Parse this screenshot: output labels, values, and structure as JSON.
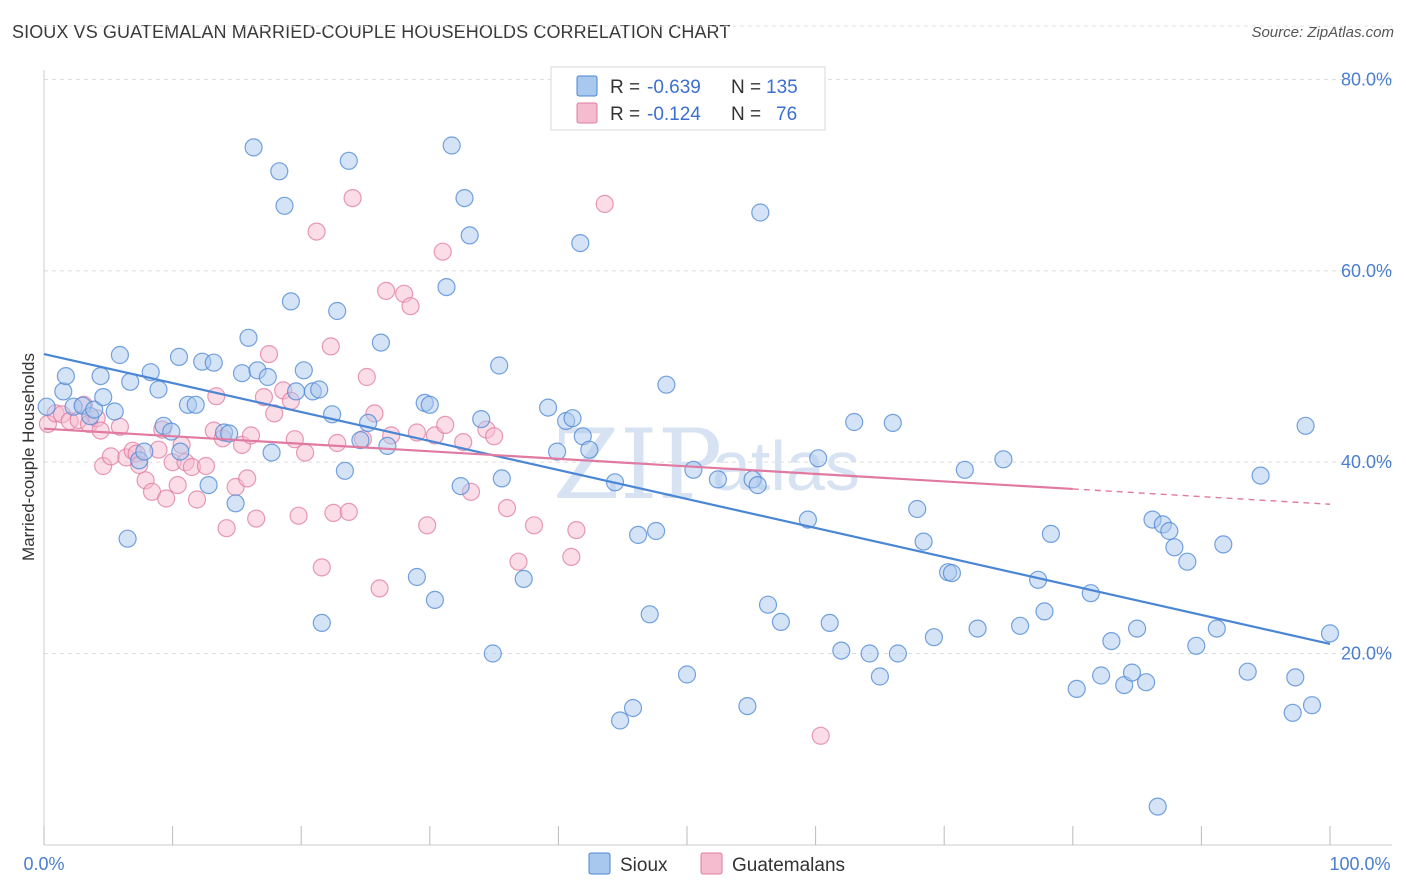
{
  "title": "SIOUX VS GUATEMALAN MARRIED-COUPLE HOUSEHOLDS CORRELATION CHART",
  "source": "Source: ZipAtlas.com",
  "watermark": {
    "zip": "ZIP",
    "atlas": "atlas"
  },
  "colors": {
    "sioux": "#4a86d4",
    "sioux_fill": "#a9c8ee",
    "guatemalans": "#e07aa0",
    "guatemalans_fill": "#f5bcd0",
    "axis_label": "#4a7fd0"
  },
  "legend": {
    "rows": [
      {
        "r_label": "R =",
        "r_value": "-0.639",
        "n_label": "N =",
        "n_value": "135"
      },
      {
        "r_label": "R =",
        "r_value": "-0.124",
        "n_label": "N =",
        "n_value": "76"
      }
    ]
  },
  "chart_data": {
    "type": "scatter",
    "title": "SIOUX VS GUATEMALAN MARRIED-COUPLE HOUSEHOLDS CORRELATION CHART",
    "xlabel": "",
    "ylabel": "Married-couple Households",
    "xlim": [
      0,
      100
    ],
    "ylim": [
      0,
      86
    ],
    "x_tick_labels": [
      "0.0%",
      "100.0%"
    ],
    "y_ticks": [
      20,
      40,
      60,
      80
    ],
    "y_tick_labels": [
      "20.0%",
      "40.0%",
      "60.0%",
      "80.0%"
    ],
    "grid": "horizontal dashed",
    "legend_position": "top-center",
    "series": [
      {
        "name": "Sioux",
        "r": -0.639,
        "n": 135,
        "trend": {
          "x": [
            0,
            100
          ],
          "y": [
            51.3,
            21.0
          ]
        },
        "points": [
          [
            0.2,
            45.8
          ],
          [
            1.5,
            47.4
          ],
          [
            1.7,
            49.0
          ],
          [
            2.3,
            45.8
          ],
          [
            3.0,
            45.9
          ],
          [
            3.6,
            44.8
          ],
          [
            3.9,
            45.5
          ],
          [
            4.4,
            49.0
          ],
          [
            4.6,
            46.8
          ],
          [
            5.5,
            45.3
          ],
          [
            5.9,
            51.2
          ],
          [
            6.5,
            32.0
          ],
          [
            6.7,
            48.4
          ],
          [
            7.4,
            40.2
          ],
          [
            7.8,
            41.1
          ],
          [
            8.3,
            49.4
          ],
          [
            8.9,
            47.6
          ],
          [
            9.3,
            43.8
          ],
          [
            9.9,
            43.2
          ],
          [
            10.5,
            51.0
          ],
          [
            10.6,
            41.1
          ],
          [
            11.2,
            46.0
          ],
          [
            11.8,
            46.0
          ],
          [
            12.3,
            50.5
          ],
          [
            12.8,
            37.6
          ],
          [
            13.2,
            50.4
          ],
          [
            14.0,
            43.1
          ],
          [
            14.4,
            43.0
          ],
          [
            14.9,
            35.7
          ],
          [
            15.4,
            49.3
          ],
          [
            15.9,
            53.0
          ],
          [
            16.3,
            72.9
          ],
          [
            16.6,
            49.6
          ],
          [
            17.4,
            48.9
          ],
          [
            17.7,
            41.0
          ],
          [
            18.3,
            70.4
          ],
          [
            18.7,
            66.8
          ],
          [
            19.2,
            56.8
          ],
          [
            19.6,
            47.4
          ],
          [
            20.2,
            49.6
          ],
          [
            20.9,
            47.4
          ],
          [
            21.4,
            47.6
          ],
          [
            21.6,
            23.2
          ],
          [
            22.4,
            45.0
          ],
          [
            22.8,
            55.8
          ],
          [
            23.4,
            39.1
          ],
          [
            23.7,
            71.5
          ],
          [
            24.6,
            42.3
          ],
          [
            25.2,
            44.1
          ],
          [
            26.2,
            52.5
          ],
          [
            26.7,
            41.7
          ],
          [
            29.0,
            28.0
          ],
          [
            29.6,
            46.2
          ],
          [
            30.0,
            46.0
          ],
          [
            30.4,
            25.6
          ],
          [
            31.3,
            58.3
          ],
          [
            31.7,
            73.1
          ],
          [
            32.4,
            37.5
          ],
          [
            32.7,
            67.6
          ],
          [
            33.1,
            63.7
          ],
          [
            34.0,
            44.5
          ],
          [
            34.9,
            20.0
          ],
          [
            35.4,
            50.1
          ],
          [
            35.6,
            38.3
          ],
          [
            37.3,
            27.8
          ],
          [
            39.2,
            45.7
          ],
          [
            39.9,
            41.1
          ],
          [
            40.6,
            44.3
          ],
          [
            41.1,
            44.6
          ],
          [
            41.7,
            62.9
          ],
          [
            41.9,
            42.7
          ],
          [
            42.4,
            41.3
          ],
          [
            44.4,
            37.9
          ],
          [
            44.8,
            13.0
          ],
          [
            45.8,
            14.3
          ],
          [
            46.2,
            32.4
          ],
          [
            47.1,
            24.1
          ],
          [
            47.6,
            32.8
          ],
          [
            48.4,
            48.1
          ],
          [
            50.0,
            17.8
          ],
          [
            50.5,
            39.2
          ],
          [
            52.4,
            38.2
          ],
          [
            54.7,
            14.5
          ],
          [
            55.1,
            38.2
          ],
          [
            55.5,
            37.6
          ],
          [
            55.7,
            66.1
          ],
          [
            56.3,
            25.1
          ],
          [
            57.3,
            23.3
          ],
          [
            59.4,
            34.0
          ],
          [
            60.2,
            40.4
          ],
          [
            61.1,
            23.2
          ],
          [
            62.0,
            20.3
          ],
          [
            63.0,
            44.2
          ],
          [
            64.2,
            20.0
          ],
          [
            65.0,
            17.6
          ],
          [
            66.0,
            44.1
          ],
          [
            66.4,
            20.0
          ],
          [
            67.9,
            35.1
          ],
          [
            68.4,
            31.7
          ],
          [
            69.2,
            21.7
          ],
          [
            70.3,
            28.5
          ],
          [
            70.6,
            28.4
          ],
          [
            71.6,
            39.2
          ],
          [
            72.6,
            22.6
          ],
          [
            74.6,
            40.3
          ],
          [
            75.9,
            22.9
          ],
          [
            77.3,
            27.7
          ],
          [
            77.8,
            24.4
          ],
          [
            78.3,
            32.5
          ],
          [
            80.3,
            16.3
          ],
          [
            81.4,
            26.3
          ],
          [
            82.2,
            17.7
          ],
          [
            83.0,
            21.3
          ],
          [
            84.0,
            16.7
          ],
          [
            84.6,
            18.0
          ],
          [
            85.0,
            22.6
          ],
          [
            85.7,
            17.0
          ],
          [
            86.2,
            34.0
          ],
          [
            86.6,
            4.0
          ],
          [
            87.0,
            33.5
          ],
          [
            87.5,
            32.8
          ],
          [
            87.9,
            31.1
          ],
          [
            88.9,
            29.6
          ],
          [
            89.6,
            20.8
          ],
          [
            91.2,
            22.6
          ],
          [
            91.7,
            31.4
          ],
          [
            93.6,
            18.1
          ],
          [
            94.6,
            38.6
          ],
          [
            97.1,
            13.8
          ],
          [
            97.3,
            17.5
          ],
          [
            98.1,
            43.8
          ],
          [
            98.6,
            14.6
          ],
          [
            100.0,
            22.1
          ]
        ]
      },
      {
        "name": "Guatemalans",
        "r": -0.124,
        "n": 76,
        "trend": {
          "x": [
            0,
            80
          ],
          "y": [
            43.5,
            37.2
          ],
          "dashed_to": {
            "x": 100,
            "y": 35.6
          }
        },
        "points": [
          [
            0.3,
            44.0
          ],
          [
            0.9,
            45.1
          ],
          [
            1.4,
            45.0
          ],
          [
            2.0,
            44.3
          ],
          [
            2.7,
            44.4
          ],
          [
            3.1,
            46.0
          ],
          [
            3.5,
            44.0
          ],
          [
            4.1,
            44.6
          ],
          [
            4.4,
            43.3
          ],
          [
            4.6,
            39.6
          ],
          [
            5.2,
            40.6
          ],
          [
            5.9,
            43.7
          ],
          [
            6.4,
            40.5
          ],
          [
            6.9,
            41.2
          ],
          [
            7.2,
            40.9
          ],
          [
            7.4,
            39.7
          ],
          [
            7.9,
            38.1
          ],
          [
            8.4,
            36.9
          ],
          [
            8.9,
            41.3
          ],
          [
            9.2,
            43.4
          ],
          [
            9.5,
            36.2
          ],
          [
            10.0,
            40.0
          ],
          [
            10.4,
            37.6
          ],
          [
            10.7,
            41.8
          ],
          [
            11.0,
            40.0
          ],
          [
            11.5,
            39.5
          ],
          [
            11.9,
            36.1
          ],
          [
            12.6,
            39.6
          ],
          [
            13.2,
            43.3
          ],
          [
            13.4,
            46.9
          ],
          [
            13.9,
            42.5
          ],
          [
            14.2,
            33.1
          ],
          [
            14.9,
            37.4
          ],
          [
            15.4,
            41.8
          ],
          [
            15.8,
            38.3
          ],
          [
            16.1,
            42.8
          ],
          [
            16.5,
            34.1
          ],
          [
            17.1,
            46.8
          ],
          [
            17.5,
            51.3
          ],
          [
            17.9,
            45.1
          ],
          [
            18.6,
            47.5
          ],
          [
            19.2,
            46.4
          ],
          [
            19.5,
            42.4
          ],
          [
            19.8,
            34.4
          ],
          [
            20.3,
            41.0
          ],
          [
            21.2,
            64.1
          ],
          [
            21.6,
            29.0
          ],
          [
            22.3,
            52.1
          ],
          [
            22.5,
            34.7
          ],
          [
            22.8,
            42.0
          ],
          [
            23.7,
            34.8
          ],
          [
            24.0,
            67.6
          ],
          [
            24.8,
            42.4
          ],
          [
            25.1,
            48.9
          ],
          [
            25.7,
            45.1
          ],
          [
            26.1,
            26.8
          ],
          [
            26.6,
            57.9
          ],
          [
            27.0,
            42.8
          ],
          [
            28.0,
            57.6
          ],
          [
            28.5,
            56.3
          ],
          [
            29.0,
            43.1
          ],
          [
            29.8,
            33.4
          ],
          [
            30.4,
            42.8
          ],
          [
            31.0,
            62.0
          ],
          [
            31.2,
            43.9
          ],
          [
            32.6,
            42.1
          ],
          [
            33.2,
            36.9
          ],
          [
            34.4,
            43.4
          ],
          [
            35.0,
            42.7
          ],
          [
            36.0,
            35.2
          ],
          [
            36.9,
            29.6
          ],
          [
            38.1,
            33.4
          ],
          [
            41.0,
            30.1
          ],
          [
            41.4,
            32.9
          ],
          [
            43.6,
            67.0
          ],
          [
            60.4,
            11.4
          ]
        ]
      }
    ]
  },
  "series_labels": [
    "Sioux",
    "Guatemalans"
  ]
}
